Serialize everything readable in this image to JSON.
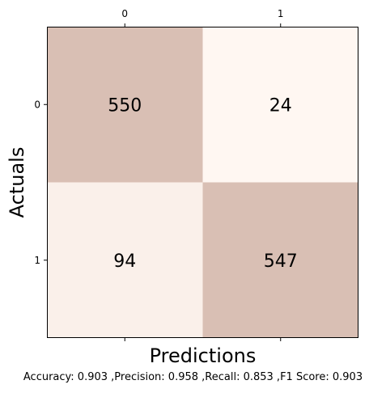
{
  "chart_data": {
    "type": "heatmap",
    "x_tick_labels": [
      "0",
      "1"
    ],
    "y_tick_labels": [
      "0",
      "1"
    ],
    "xlabel": "Predictions",
    "ylabel": "Actuals",
    "values": [
      [
        550,
        24
      ],
      [
        94,
        547
      ]
    ],
    "colormap": {
      "low": "#fff7f2",
      "high": "#d9bfb4"
    }
  },
  "metrics_text": "Accuracy: 0.903 ,Precision: 0.958 ,Recall: 0.853 ,F1 Score: 0.903"
}
